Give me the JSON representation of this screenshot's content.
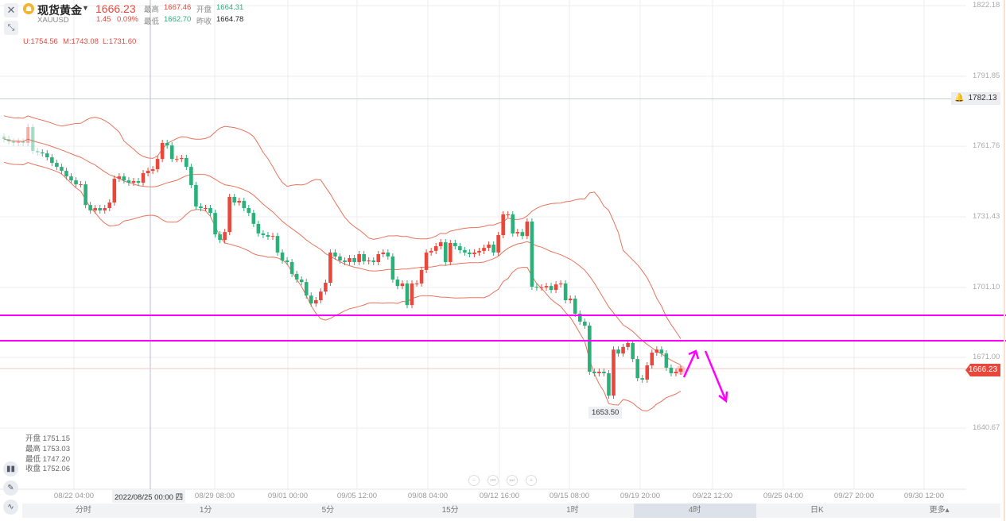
{
  "header": {
    "close_icon": "close-icon",
    "collapse_icon": "collapse-icon",
    "coin_icon": "gold-coin-icon",
    "title": "现货黄金",
    "dropdown_icon": "caret-down-icon",
    "symbol": "XAUUSD",
    "price": "1666.23",
    "change": "1.45",
    "change_pct": "0.09%",
    "high_label": "最高",
    "high": "1667.46",
    "open_label": "开盘",
    "open": "1664.31",
    "low_label": "最低",
    "low": "1662.70",
    "prev_label": "昨收",
    "prev": "1664.78"
  },
  "indicator": {
    "u": "U:1754.56",
    "m": "M:1743.08",
    "l": "L:1731.60"
  },
  "hover_ohlc": [
    {
      "label": "开盘",
      "value": "1751.15"
    },
    {
      "label": "最高",
      "value": "1753.03"
    },
    {
      "label": "最低",
      "value": "1747.20"
    },
    {
      "label": "收盘",
      "value": "1752.06"
    }
  ],
  "crosshair_label": "2022/08/25 00:00 四",
  "left_tools": [
    "candlestick-icon",
    "pen-icon",
    "indicator-icon"
  ],
  "zoom_controls": [
    "−",
    "⏮",
    "⏭",
    "+"
  ],
  "tabs": [
    {
      "label": "分时"
    },
    {
      "label": "1分"
    },
    {
      "label": "5分"
    },
    {
      "label": "15分"
    },
    {
      "label": "1时"
    },
    {
      "label": "4时",
      "active": true
    },
    {
      "label": "日K"
    },
    {
      "label": "更多▴"
    }
  ],
  "colors": {
    "up": "#e8483c",
    "down": "#2bb07a",
    "band": "#e8735c",
    "support": "#ff00ff"
  },
  "chart_data": {
    "type": "candlestick",
    "interval": "4时",
    "x_ticks": [
      "08/22 04:00",
      "08/29 08:00",
      "09/01 00:00",
      "09/05 12:00",
      "09/08 04:00",
      "09/12 16:00",
      "09/15 08:00",
      "09/19 20:00",
      "09/22 12:00",
      "09/25 04:00",
      "09/27 20:00",
      "09/30 12:00"
    ],
    "y_ticks": [
      "1822.18",
      "1791.85",
      "1761.76",
      "1731.43",
      "1701.10",
      "1671.00",
      "1640.67"
    ],
    "ylim": [
      1640.67,
      1822.18
    ],
    "closes": [
      1764.9,
      1763.8,
      1763.2,
      1763.8,
      1763.2,
      1770.0,
      1759.8,
      1759.1,
      1758.7,
      1757.0,
      1754.6,
      1752.9,
      1751.2,
      1748.8,
      1747.1,
      1745.4,
      1745.4,
      1736.5,
      1734.2,
      1735.2,
      1734.2,
      1735.2,
      1737.6,
      1747.8,
      1748.8,
      1747.1,
      1746.1,
      1746.8,
      1746.1,
      1750.2,
      1751.2,
      1751.9,
      1756.3,
      1763.2,
      1762.1,
      1756.3,
      1756.3,
      1756.7,
      1752.9,
      1745.1,
      1735.9,
      1735.2,
      1735.2,
      1733.1,
      1723.9,
      1721.5,
      1724.9,
      1740.0,
      1737.6,
      1738.3,
      1735.2,
      1733.1,
      1728.4,
      1724.3,
      1723.6,
      1722.9,
      1723.2,
      1716.1,
      1712.7,
      1712.0,
      1706.9,
      1704.5,
      1703.4,
      1697.6,
      1694.2,
      1695.6,
      1699.3,
      1703.1,
      1716.1,
      1714.4,
      1712.7,
      1712.0,
      1713.7,
      1712.0,
      1715.4,
      1712.3,
      1712.7,
      1712.0,
      1715.4,
      1716.1,
      1714.4,
      1704.5,
      1701.7,
      1702.8,
      1693.5,
      1702.8,
      1702.8,
      1708.6,
      1716.1,
      1716.8,
      1718.8,
      1720.5,
      1712.0,
      1720.2,
      1718.8,
      1717.1,
      1716.1,
      1715.4,
      1716.1,
      1716.8,
      1718.1,
      1719.5,
      1716.1,
      1723.6,
      1732.5,
      1732.5,
      1724.3,
      1724.9,
      1723.2,
      1729.4,
      1701.4,
      1701.1,
      1701.1,
      1701.7,
      1700.0,
      1702.4,
      1702.8,
      1695.6,
      1696.3,
      1689.8,
      1686.4,
      1684.7,
      1664.9,
      1664.2,
      1664.9,
      1664.2,
      1654.6,
      1674.4,
      1672.7,
      1675.5,
      1677.2,
      1670.3,
      1662.1,
      1661.5,
      1667.6,
      1673.1,
      1674.4,
      1672.7,
      1666.6,
      1664.2,
      1664.9,
      1666.23
    ],
    "bollinger": {
      "period": 20,
      "mult": 2
    },
    "last_price": "1666.23",
    "alert_price": "1782.13",
    "low_label": "1653.50",
    "support_lines": [
      1689.1,
      1678.2
    ],
    "annotations": [
      "up-arrow",
      "down-arrow"
    ]
  }
}
